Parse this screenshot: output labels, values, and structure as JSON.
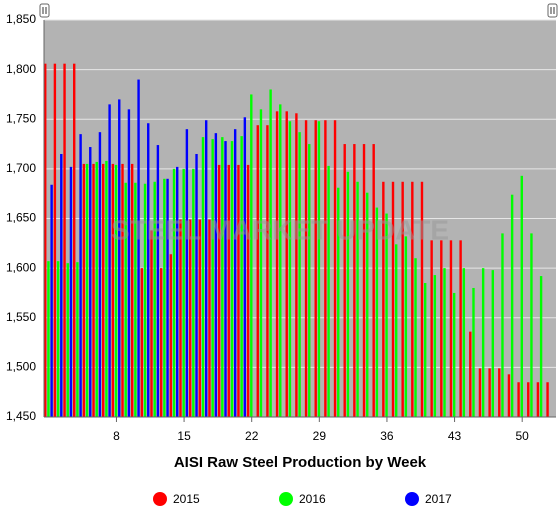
{
  "chart_data": {
    "type": "bar",
    "x_label": "AISI Raw Steel Production by Week",
    "watermark": "STEEL MARKET UPDATE",
    "categories": [
      null,
      null,
      null,
      null,
      null,
      null,
      null,
      "8",
      null,
      null,
      null,
      null,
      null,
      null,
      "15",
      null,
      null,
      null,
      null,
      null,
      null,
      "22",
      null,
      null,
      null,
      null,
      null,
      null,
      "29",
      null,
      null,
      null,
      null,
      null,
      null,
      "36",
      null,
      null,
      null,
      null,
      null,
      null,
      "43",
      null,
      null,
      null,
      null,
      null,
      null,
      "50",
      null,
      null,
      null
    ],
    "series": [
      {
        "name": "2015",
        "color": "#ff0000",
        "values": [
          1806,
          1806,
          1806,
          1806,
          1705,
          1705,
          1705,
          1705,
          1705,
          1705,
          1600,
          1638,
          1600,
          1614,
          1649,
          1649,
          1649,
          1649,
          1704,
          1704,
          1704,
          1704,
          1744,
          1744,
          1758,
          1758,
          1756,
          1749,
          1749,
          1749,
          1749,
          1725,
          1725,
          1725,
          1725,
          1687,
          1687,
          1687,
          1687,
          1687,
          1628,
          1628,
          1628,
          1628,
          1536,
          1499,
          1499,
          1499,
          1493,
          1485,
          1485,
          1485,
          1485
        ]
      },
      {
        "name": "2016",
        "color": "#00ff00",
        "values": [
          1607,
          1607,
          1605,
          1606,
          1705,
          1707,
          1708,
          1704,
          1686,
          1686,
          1685,
          1687,
          1690,
          1700,
          1700,
          1700,
          1732,
          1730,
          1732,
          1728,
          1733,
          1775,
          1760,
          1780,
          1765,
          1748,
          1737,
          1725,
          1748,
          1703,
          1681,
          1697,
          1687,
          1676,
          1661,
          1655,
          1624,
          1632,
          1610,
          1585,
          1593,
          1600,
          1575,
          1600,
          1580,
          1600,
          1598,
          1635,
          1674,
          1693,
          1635,
          1592,
          null
        ]
      },
      {
        "name": "2017",
        "color": "#0000ff",
        "values": [
          1684,
          1715,
          1702,
          1735,
          1722,
          1737,
          1765,
          1770,
          1760,
          1790,
          1746,
          1724,
          1690,
          1702,
          1740,
          1715,
          1749,
          1736,
          1728,
          1740,
          1752,
          null,
          null,
          null,
          null,
          null,
          null,
          null,
          null,
          null,
          null,
          null,
          null,
          null,
          null,
          null,
          null,
          null,
          null,
          null,
          null,
          null,
          null,
          null,
          null,
          null,
          null,
          null,
          null,
          null,
          null,
          null,
          null
        ]
      }
    ],
    "ylim": [
      1450,
      1850
    ],
    "yticks": [
      {
        "value": 1450,
        "label": "1,450"
      },
      {
        "value": 1500,
        "label": "1,500"
      },
      {
        "value": 1550,
        "label": "1,550"
      },
      {
        "value": 1600,
        "label": "1,600"
      },
      {
        "value": 1650,
        "label": "1,650"
      },
      {
        "value": 1700,
        "label": "1,700"
      },
      {
        "value": 1750,
        "label": "1,750"
      },
      {
        "value": 1800,
        "label": "1,800"
      },
      {
        "value": 1850,
        "label": "1,850"
      }
    ],
    "grid": true,
    "legend": "bottom"
  }
}
